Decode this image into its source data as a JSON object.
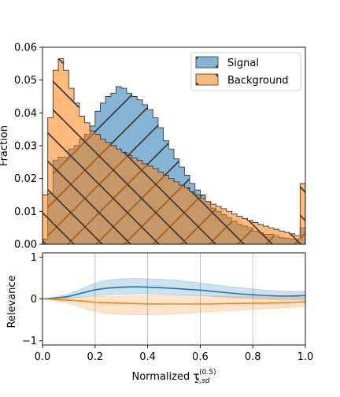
{
  "chart_data": [
    {
      "type": "area",
      "panel": "top",
      "histtype": "step-filled",
      "ylabel": "Fraction",
      "xlim": [
        0.0,
        1.0
      ],
      "ylim": [
        0.0,
        0.06
      ],
      "yticks": [
        0.0,
        0.01,
        0.02,
        0.03,
        0.04,
        0.05,
        0.06
      ],
      "ytick_labels": [
        "0.00",
        "0.01",
        "0.02",
        "0.03",
        "0.04",
        "0.05",
        "0.06"
      ],
      "legend": "top-right",
      "bin_edges": [
        0.0,
        0.02,
        0.04,
        0.06,
        0.08,
        0.1,
        0.12,
        0.14,
        0.16,
        0.18,
        0.2,
        0.22,
        0.24,
        0.26,
        0.28,
        0.3,
        0.32,
        0.34,
        0.36,
        0.38,
        0.4,
        0.42,
        0.44,
        0.46,
        0.48,
        0.5,
        0.52,
        0.54,
        0.56,
        0.58,
        0.6,
        0.62,
        0.64,
        0.66,
        0.68,
        0.7,
        0.72,
        0.74,
        0.76,
        0.78,
        0.8,
        0.82,
        0.84,
        0.86,
        0.88,
        0.9,
        0.92,
        0.94,
        0.96,
        0.98,
        1.0
      ],
      "series": [
        {
          "name": "Signal",
          "color": "#1f77b4",
          "values": [
            0.0015,
            0.0155,
            0.0255,
            0.0265,
            0.0265,
            0.029,
            0.03,
            0.032,
            0.0335,
            0.036,
            0.0405,
            0.043,
            0.045,
            0.046,
            0.048,
            0.0475,
            0.046,
            0.045,
            0.044,
            0.0425,
            0.041,
            0.0385,
            0.0355,
            0.0315,
            0.029,
            0.026,
            0.0235,
            0.021,
            0.0185,
            0.0165,
            0.015,
            0.013,
            0.011,
            0.01,
            0.009,
            0.008,
            0.007,
            0.006,
            0.0055,
            0.005,
            0.004,
            0.0035,
            0.003,
            0.003,
            0.0025,
            0.002,
            0.0018,
            0.0015,
            0.0015,
            0.005
          ]
        },
        {
          "name": "Background",
          "color": "#ff7f0e",
          "values": [
            0.015,
            0.0385,
            0.053,
            0.0565,
            0.053,
            0.0475,
            0.043,
            0.039,
            0.037,
            0.0345,
            0.0335,
            0.032,
            0.031,
            0.03,
            0.029,
            0.028,
            0.027,
            0.0262,
            0.0255,
            0.0245,
            0.0238,
            0.023,
            0.022,
            0.021,
            0.02,
            0.019,
            0.018,
            0.0172,
            0.016,
            0.015,
            0.014,
            0.013,
            0.0122,
            0.0115,
            0.0108,
            0.01,
            0.0092,
            0.0085,
            0.0078,
            0.0072,
            0.0066,
            0.006,
            0.0055,
            0.005,
            0.0045,
            0.004,
            0.0036,
            0.0032,
            0.0026,
            0.0185
          ]
        }
      ]
    },
    {
      "type": "line",
      "panel": "bottom",
      "xlabel": "Normalized τ",
      "xlabel_sub": "2,sd",
      "xlabel_sup": "(0.5)",
      "ylabel": "Relevance",
      "xlim": [
        0.0,
        1.0
      ],
      "ylim": [
        -1.1,
        1.1
      ],
      "xticks": [
        0.0,
        0.2,
        0.4,
        0.6,
        0.8,
        1.0
      ],
      "xtick_labels": [
        "0.0",
        "0.2",
        "0.4",
        "0.6",
        "0.8",
        "1.0"
      ],
      "yticks": [
        -1,
        0,
        1
      ],
      "ytick_labels": [
        "−1",
        "0",
        "1"
      ],
      "grid": "x",
      "x": [
        0.0,
        0.05,
        0.1,
        0.15,
        0.2,
        0.25,
        0.3,
        0.35,
        0.4,
        0.45,
        0.5,
        0.55,
        0.6,
        0.65,
        0.7,
        0.75,
        0.8,
        0.85,
        0.9,
        0.95,
        1.0
      ],
      "series": [
        {
          "color": "#1f77b4",
          "mean": [
            0.0,
            0.02,
            0.06,
            0.14,
            0.22,
            0.26,
            0.28,
            0.29,
            0.28,
            0.27,
            0.25,
            0.23,
            0.21,
            0.18,
            0.15,
            0.12,
            0.1,
            0.08,
            0.07,
            0.07,
            0.08
          ],
          "band_low": [
            0.0,
            0.0,
            0.02,
            0.05,
            0.08,
            0.1,
            0.11,
            0.12,
            0.12,
            0.11,
            0.1,
            0.09,
            0.08,
            0.06,
            0.04,
            0.02,
            0.01,
            -0.01,
            -0.02,
            -0.02,
            -0.02
          ],
          "band_high": [
            0.0,
            0.05,
            0.12,
            0.25,
            0.38,
            0.45,
            0.48,
            0.49,
            0.48,
            0.47,
            0.45,
            0.42,
            0.38,
            0.34,
            0.3,
            0.27,
            0.24,
            0.21,
            0.19,
            0.18,
            0.18
          ]
        },
        {
          "color": "#ff7f0e",
          "mean": [
            0.0,
            -0.01,
            -0.03,
            -0.05,
            -0.08,
            -0.09,
            -0.1,
            -0.11,
            -0.12,
            -0.12,
            -0.12,
            -0.12,
            -0.12,
            -0.12,
            -0.11,
            -0.11,
            -0.1,
            -0.1,
            -0.09,
            -0.08,
            -0.07
          ],
          "band_low": [
            0.0,
            -0.04,
            -0.1,
            -0.2,
            -0.3,
            -0.35,
            -0.37,
            -0.38,
            -0.38,
            -0.37,
            -0.36,
            -0.34,
            -0.32,
            -0.3,
            -0.28,
            -0.27,
            -0.25,
            -0.23,
            -0.22,
            -0.2,
            -0.18
          ],
          "band_high": [
            0.0,
            0.02,
            0.03,
            0.04,
            0.06,
            0.07,
            0.07,
            0.08,
            0.08,
            0.08,
            0.08,
            0.08,
            0.07,
            0.07,
            0.07,
            0.06,
            0.06,
            0.05,
            0.05,
            0.05,
            0.05
          ]
        }
      ]
    }
  ]
}
